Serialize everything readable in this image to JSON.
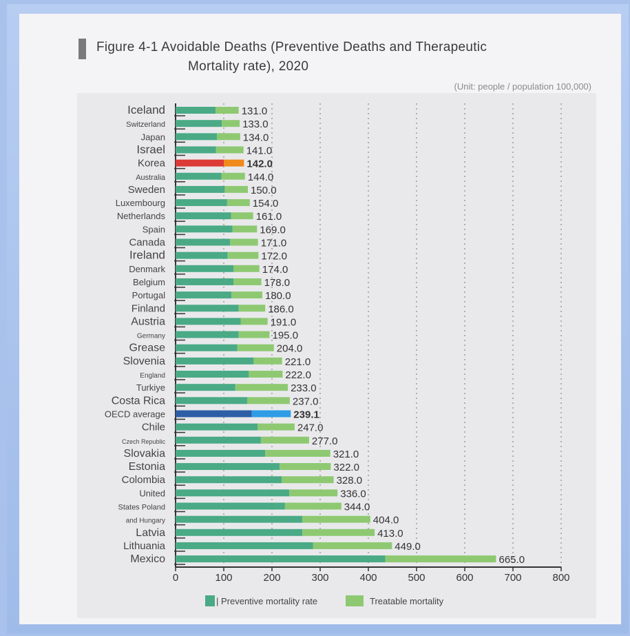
{
  "title": {
    "line1": "Figure 4-1 Avoidable Deaths (Preventive Deaths and Therapeutic",
    "line2": "Mortality rate), 2020"
  },
  "unit": "(Unit: people / population 100,000)",
  "colors": {
    "preventive": "#4aaa86",
    "treatable": "#8ec972",
    "korea_preventive": "#dc3a36",
    "korea_treatable": "#f08a1c",
    "oecd_preventive": "#2e5ea6",
    "oecd_treatable": "#2e9de6"
  },
  "chart_data": {
    "type": "bar",
    "orientation": "horizontal",
    "stacked": true,
    "title": "Figure 4-1 Avoidable Deaths (Preventive Deaths and Therapeutic Mortality rate), 2020",
    "categories": [
      "Iceland",
      "Switzerland",
      "Japan",
      "Israel",
      "Korea",
      "Australia",
      "Sweden",
      "Luxembourg",
      "Netherlands",
      "Spain",
      "Canada",
      "Ireland",
      "Denmark",
      "Belgium",
      "Portugal",
      "Finland",
      "Austria",
      "Germany",
      "Grease",
      "Slovenia",
      "England",
      "Turkiye",
      "Costa Rica",
      "OECD average",
      "Chile",
      "Czech Republic",
      "Slovakia",
      "Estonia",
      "Colombia",
      "United",
      "States Poland",
      "and Hungary",
      "Latvia",
      "Lithuania",
      "Mexico"
    ],
    "series": [
      {
        "name": "| Preventive mortality rate",
        "values": [
          83,
          96,
          86,
          84,
          100,
          95,
          102,
          107,
          115,
          118,
          113,
          108,
          120,
          120,
          116,
          131,
          135,
          131,
          128,
          162,
          152,
          124,
          149,
          158,
          170,
          177,
          186,
          216,
          220,
          236,
          227,
          263,
          263,
          285,
          435
        ]
      },
      {
        "name": "Treatable mortality",
        "values": [
          48,
          37,
          48,
          57,
          42,
          49,
          48,
          47,
          46,
          51,
          58,
          64,
          54,
          58,
          64,
          55,
          56,
          64,
          76,
          59,
          70,
          109,
          88,
          81,
          77,
          100,
          135,
          106,
          108,
          100,
          117,
          141,
          150,
          164,
          230
        ]
      }
    ],
    "totals": [
      "131.0",
      "133.0",
      "134.0",
      "141.0",
      "142.0",
      "144.0",
      "150.0",
      "154.0",
      "161.0",
      "169.0",
      "171.0",
      "172.0",
      "174.0",
      "178.0",
      "180.0",
      "186.0",
      "191.0",
      "195.0",
      "204.0",
      "221.0",
      "222.0",
      "233.0",
      "237.0",
      "239.1",
      "247.0",
      "277.0",
      "321.0",
      "322.0",
      "328.0",
      "336.0",
      "344.0",
      "404.0",
      "413.0",
      "449.0",
      "665.0"
    ],
    "highlight": {
      "Korea": "korea",
      "OECD average": "oecd"
    },
    "x_ticks": [
      0,
      100,
      200,
      300,
      400,
      500,
      600,
      700,
      800
    ],
    "xlim": [
      0,
      800
    ],
    "grid": "vertical dotted",
    "legend": "bottom"
  }
}
